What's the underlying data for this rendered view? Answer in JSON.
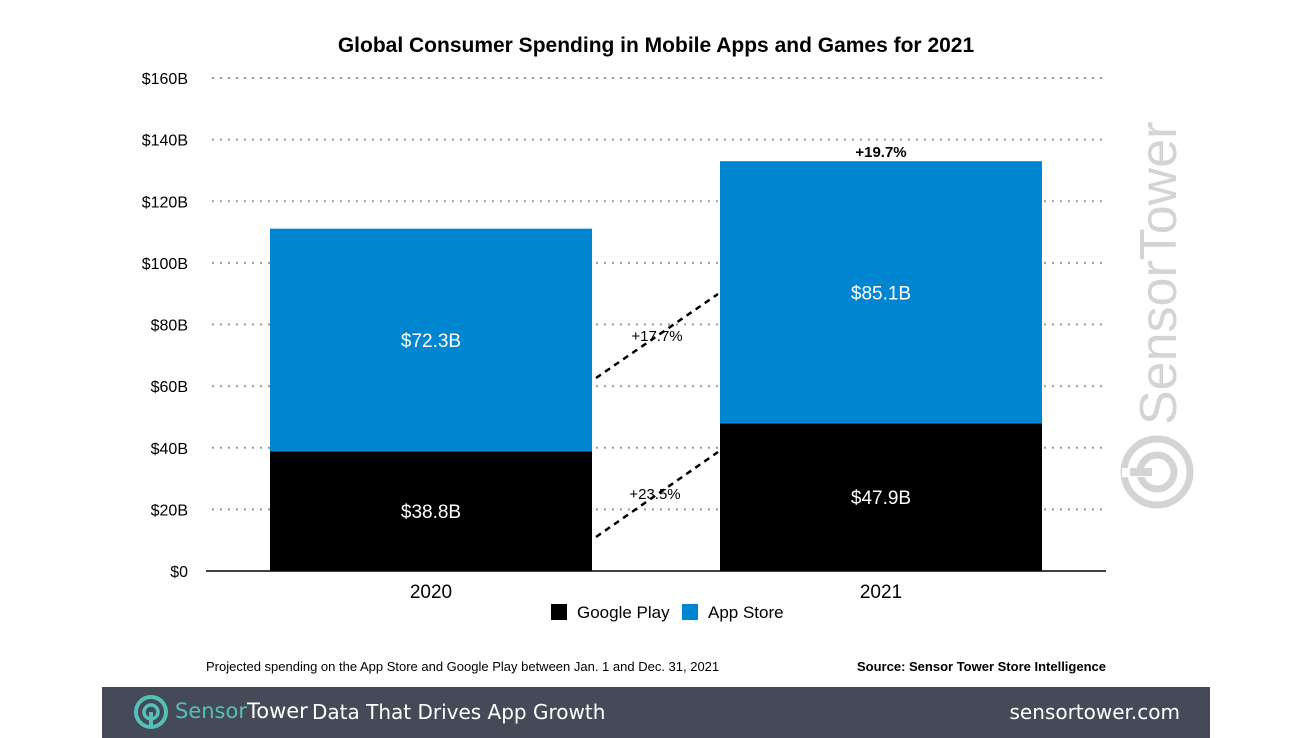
{
  "colors": {
    "google_play": "#000000",
    "app_store": "#0086d1",
    "footer_bg": "#454a58",
    "brand_teal": "#55c0b8",
    "watermark": "#d4d4d4"
  },
  "chart_data": {
    "type": "bar",
    "stacked": true,
    "title": "Global Consumer Spending in Mobile Apps and Games for 2021",
    "categories": [
      "2020",
      "2021"
    ],
    "series": [
      {
        "name": "Google Play",
        "values": [
          38.8,
          47.9
        ],
        "labels": [
          "$38.8B",
          "$47.9B"
        ],
        "color": "#000000"
      },
      {
        "name": "App Store",
        "values": [
          72.3,
          85.1
        ],
        "labels": [
          "$72.3B",
          "$85.1B"
        ],
        "color": "#0086d1"
      }
    ],
    "ylim": [
      0,
      160
    ],
    "yticks": [
      0,
      20,
      40,
      60,
      80,
      100,
      120,
      140,
      160
    ],
    "ytick_labels": [
      "$0",
      "$20B",
      "$40B",
      "$60B",
      "$80B",
      "$100B",
      "$120B",
      "$140B",
      "$160B"
    ],
    "xlabel": "",
    "ylabel": "",
    "grid": "horizontal dotted",
    "legend_position": "bottom-center",
    "annotations": {
      "app_store_growth": "+17.7%",
      "google_play_growth": "+23.5%",
      "total_growth": "+19.7%"
    },
    "footnote": "Projected spending on the App Store and Google Play between Jan. 1 and Dec. 31, 2021",
    "source": "Source: Sensor Tower Store Intelligence"
  },
  "watermark": {
    "text": "SensorTower",
    "icon": "sensortower-logo-icon"
  },
  "footer": {
    "brand_part1": "Sensor",
    "brand_part2": "Tower",
    "tagline": "Data That Drives App Growth",
    "url": "sensortower.com",
    "logo_icon": "sensortower-logo-icon"
  }
}
